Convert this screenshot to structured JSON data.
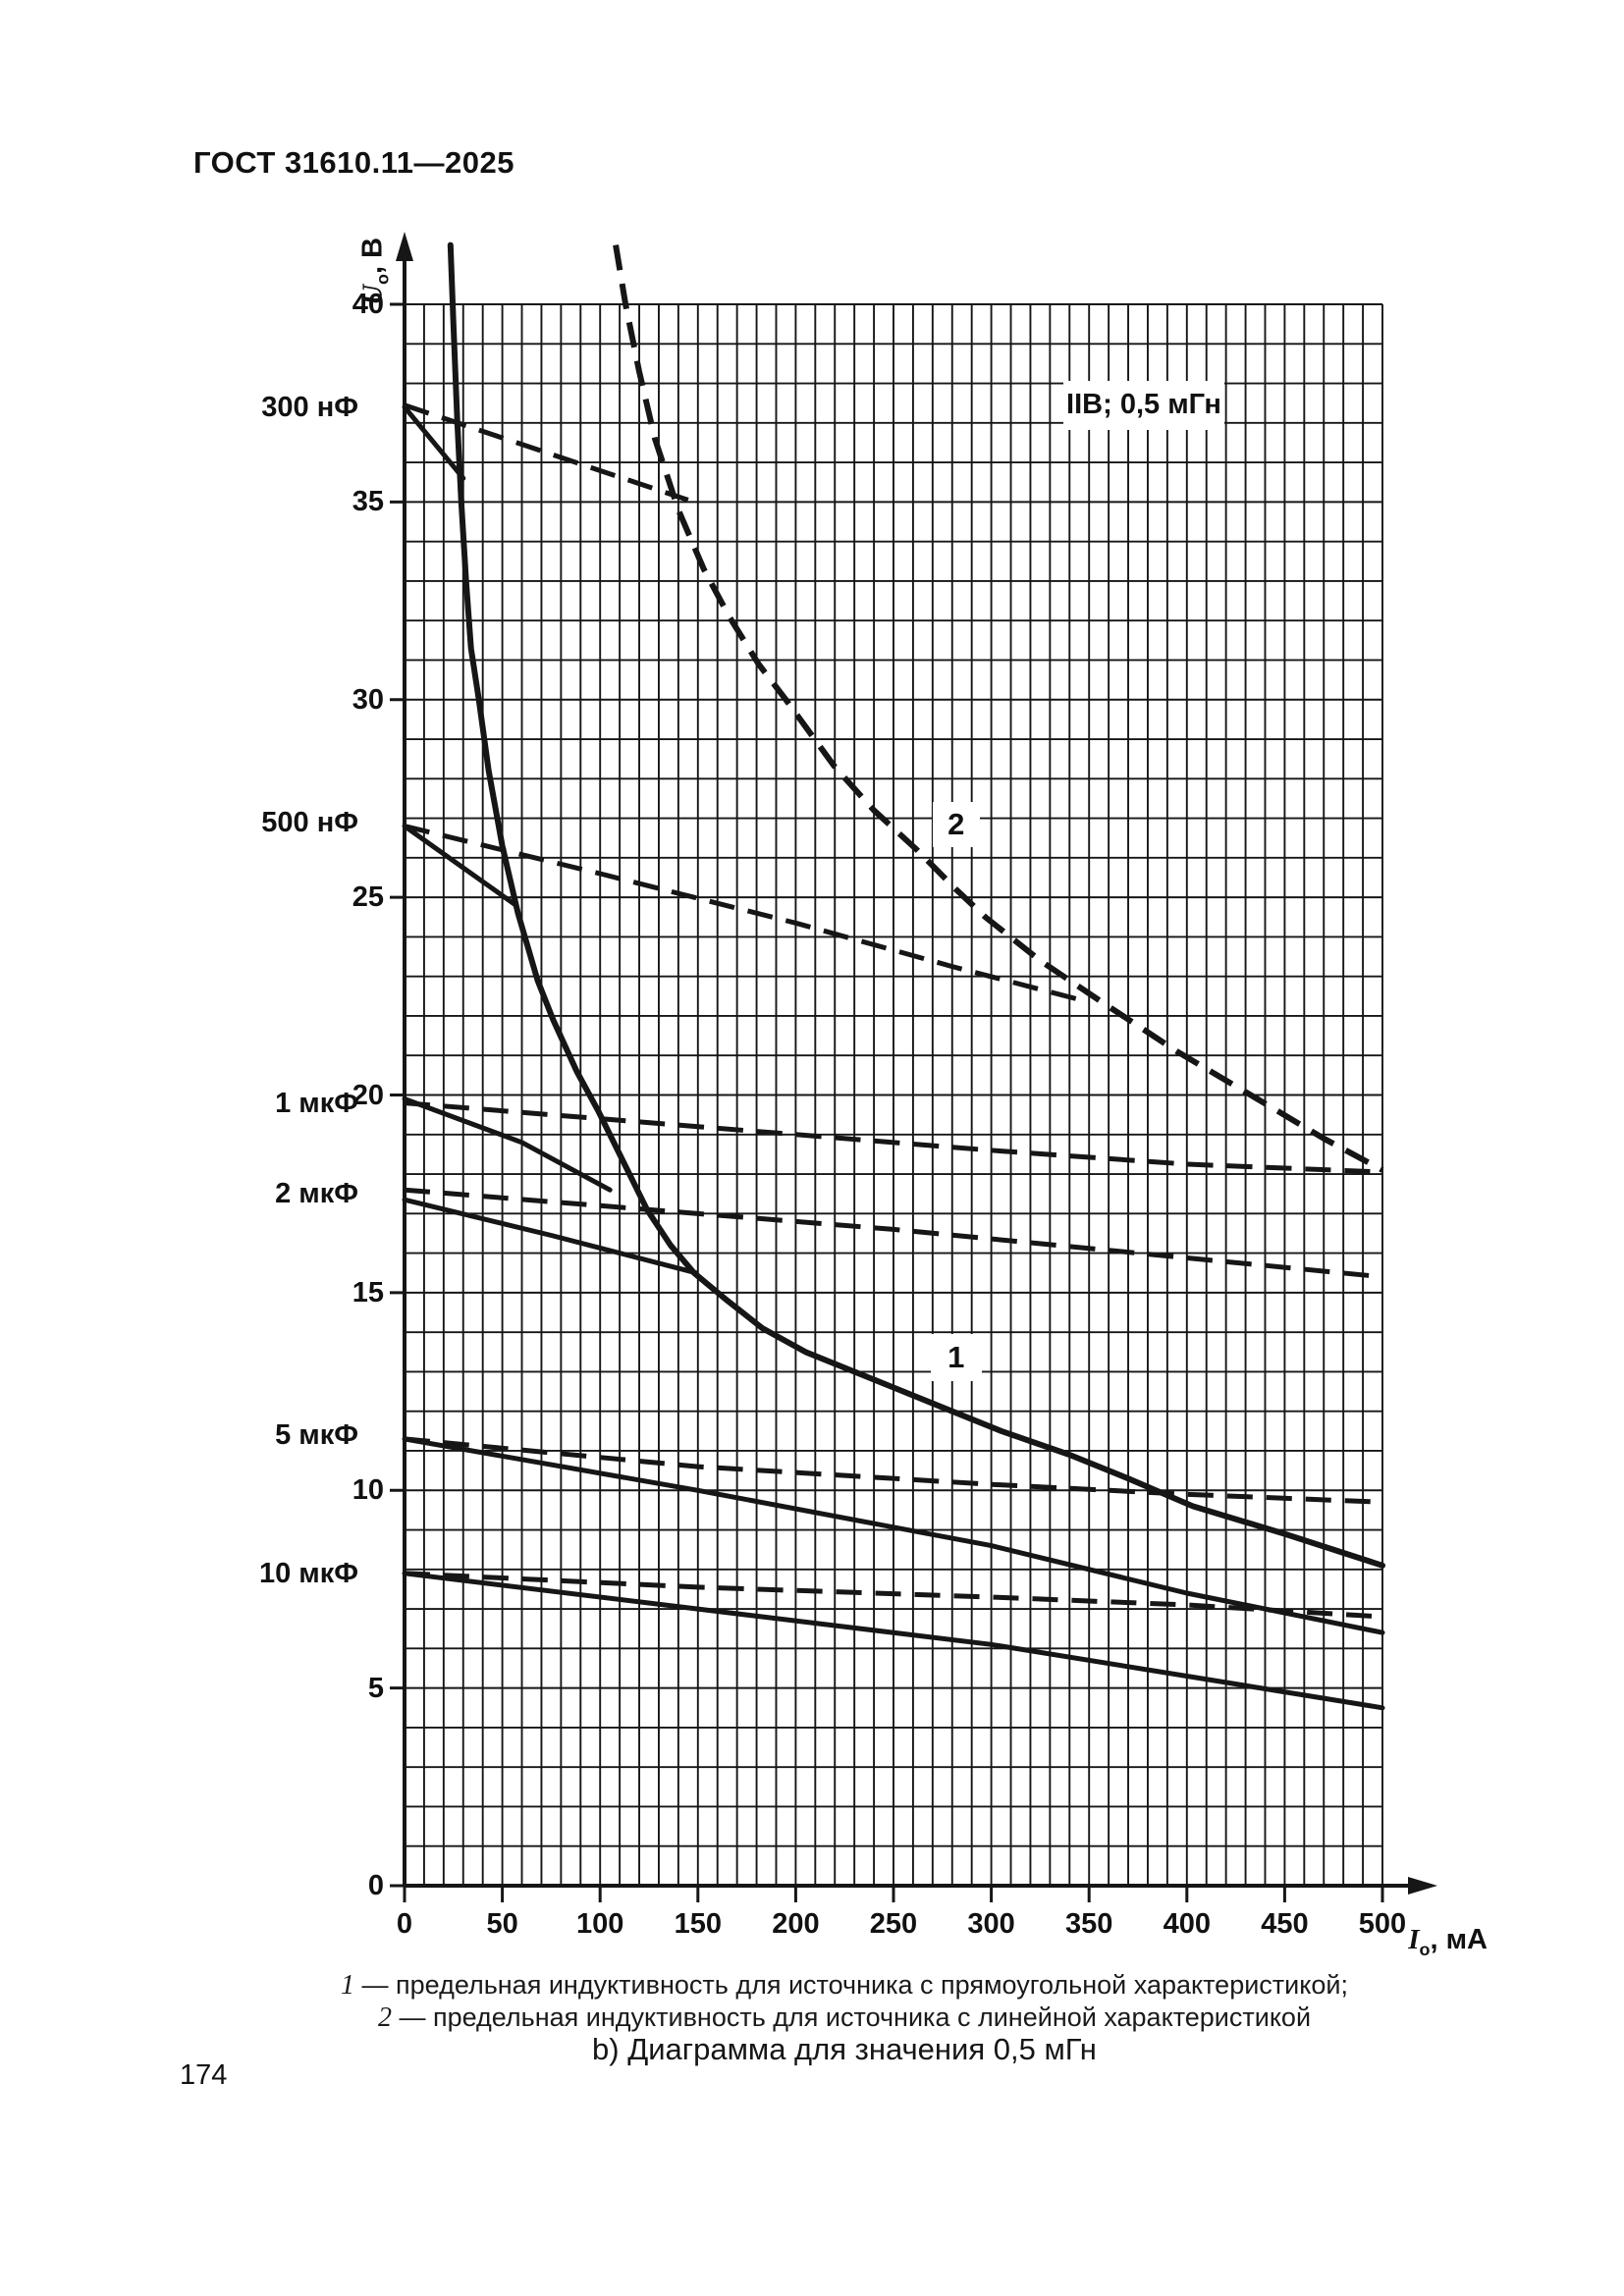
{
  "page": {
    "header": "ГОСТ 31610.11—2025",
    "page_number": "174"
  },
  "chart_data": {
    "type": "line",
    "title_box": {
      "text": "IIB; 0,5 мГн",
      "i": 378,
      "u": 37.45,
      "w": 164,
      "h": 50
    },
    "xlabel": {
      "symbol": "I",
      "sub": "o",
      "unit": ", мА"
    },
    "ylabel": {
      "symbol": "U",
      "sub": "o",
      "unit": ", В"
    },
    "xlim": [
      0,
      500
    ],
    "ylim": [
      0,
      40
    ],
    "grid": {
      "minor_x_step_mA": 10,
      "minor_y_step_V": 1
    },
    "x_ticks": [
      {
        "t": "0",
        "v": 0
      },
      {
        "t": "50",
        "v": 50
      },
      {
        "t": "100",
        "v": 100
      },
      {
        "t": "150",
        "v": 150
      },
      {
        "t": "200",
        "v": 200
      },
      {
        "t": "250",
        "v": 250
      },
      {
        "t": "300",
        "v": 300
      },
      {
        "t": "350",
        "v": 350
      },
      {
        "t": "400",
        "v": 400
      },
      {
        "t": "450",
        "v": 450
      },
      {
        "t": "500",
        "v": 500
      }
    ],
    "y_ticks": [
      {
        "t": "40",
        "v": 40
      },
      {
        "t": "35",
        "v": 35
      },
      {
        "t": "30",
        "v": 30
      },
      {
        "t": "25",
        "v": 25
      },
      {
        "t": "20",
        "v": 20
      },
      {
        "t": "15",
        "v": 15
      },
      {
        "t": "10",
        "v": 10
      },
      {
        "t": "5",
        "v": 5
      },
      {
        "t": "0",
        "v": 0
      }
    ],
    "capacitance_labels": [
      {
        "text": "300 нФ",
        "u": 37.4
      },
      {
        "text": "500 нФ",
        "u": 26.9
      },
      {
        "text": "1 мкФ",
        "u": 19.8
      },
      {
        "text": "2 мкФ",
        "u": 17.5
      },
      {
        "text": "5 мкФ",
        "u": 11.4
      },
      {
        "text": "10 мкФ",
        "u": 7.9
      }
    ],
    "curve_labels": [
      {
        "text": "1",
        "i": 282,
        "u": 13.35,
        "w": 52,
        "h": 48
      },
      {
        "text": "2",
        "i": 282,
        "u": 26.85,
        "w": 48,
        "h": 46
      }
    ],
    "series": [
      {
        "name": "curve-1-inductance-limit-rectangular",
        "style": "solid",
        "width": 6,
        "points": [
          [
            23.5,
            41.5
          ],
          [
            25,
            39.5
          ],
          [
            27,
            37
          ],
          [
            29,
            35
          ],
          [
            31.5,
            33
          ],
          [
            34,
            31.3
          ],
          [
            38,
            30
          ],
          [
            43,
            28.2
          ],
          [
            50,
            26.3
          ],
          [
            58,
            24.6
          ],
          [
            68,
            22.9
          ],
          [
            76,
            21.9
          ],
          [
            88,
            20.6
          ],
          [
            99,
            19.6
          ],
          [
            112,
            18.3
          ],
          [
            124,
            17.1
          ],
          [
            136,
            16.2
          ],
          [
            148,
            15.5
          ],
          [
            165,
            14.8
          ],
          [
            183,
            14.1
          ],
          [
            205,
            13.5
          ],
          [
            225,
            13.1
          ],
          [
            250,
            12.6
          ],
          [
            275,
            12.1
          ],
          [
            305,
            11.5
          ],
          [
            340,
            10.9
          ],
          [
            370,
            10.3
          ],
          [
            403,
            9.6
          ],
          [
            450,
            8.9
          ],
          [
            500,
            8.1
          ]
        ]
      },
      {
        "name": "curve-2-inductance-limit-linear",
        "style": "dashed",
        "width": 6,
        "points": [
          [
            108,
            41.5
          ],
          [
            113,
            40
          ],
          [
            120,
            38.3
          ],
          [
            128,
            36.6
          ],
          [
            140,
            34.8
          ],
          [
            153,
            33.3
          ],
          [
            166,
            32.1
          ],
          [
            181,
            30.9
          ],
          [
            195,
            30
          ],
          [
            220,
            28.3
          ],
          [
            240,
            27.2
          ],
          [
            262,
            26.2
          ],
          [
            282,
            25.2
          ],
          [
            297,
            24.5
          ],
          [
            325,
            23.4
          ],
          [
            355,
            22.4
          ],
          [
            395,
            21.1
          ],
          [
            436,
            19.9
          ],
          [
            470,
            18.9
          ],
          [
            500,
            18.1
          ]
        ]
      },
      {
        "name": "cap-300nF-solid",
        "style": "solid",
        "width": 5,
        "points": [
          [
            0,
            37.4
          ],
          [
            30,
            35.6
          ]
        ]
      },
      {
        "name": "cap-300nF-dashed",
        "style": "dashed",
        "width": 5,
        "points": [
          [
            0,
            37.45
          ],
          [
            145,
            35.05
          ]
        ]
      },
      {
        "name": "cap-500nF-solid",
        "style": "solid",
        "width": 5,
        "points": [
          [
            0,
            26.8
          ],
          [
            57,
            24.8
          ]
        ]
      },
      {
        "name": "cap-500nF-dashed",
        "style": "dashed",
        "width": 5,
        "points": [
          [
            0,
            26.8
          ],
          [
            100,
            25.6
          ],
          [
            200,
            24.35
          ],
          [
            280,
            23.25
          ],
          [
            350,
            22.35
          ]
        ]
      },
      {
        "name": "cap-1uF-solid",
        "style": "solid",
        "width": 5,
        "points": [
          [
            0,
            19.9
          ],
          [
            60,
            18.8
          ],
          [
            105,
            17.6
          ]
        ]
      },
      {
        "name": "cap-1uF-dashed",
        "style": "dashed",
        "width": 5,
        "points": [
          [
            0,
            19.8
          ],
          [
            150,
            19.2
          ],
          [
            300,
            18.6
          ],
          [
            400,
            18.25
          ],
          [
            500,
            18.05
          ]
        ]
      },
      {
        "name": "cap-2uF-solid",
        "style": "solid",
        "width": 5,
        "points": [
          [
            0,
            17.35
          ],
          [
            75,
            16.45
          ],
          [
            149,
            15.5
          ]
        ]
      },
      {
        "name": "cap-2uF-dashed",
        "style": "dashed",
        "width": 5,
        "points": [
          [
            0,
            17.6
          ],
          [
            250,
            16.6
          ],
          [
            500,
            15.4
          ]
        ]
      },
      {
        "name": "cap-5uF-solid",
        "style": "solid",
        "width": 5,
        "points": [
          [
            0,
            11.3
          ],
          [
            150,
            10.0
          ],
          [
            300,
            8.6
          ],
          [
            400,
            7.4
          ],
          [
            500,
            6.4
          ]
        ]
      },
      {
        "name": "cap-5uF-dashed",
        "style": "dashed",
        "width": 5,
        "points": [
          [
            0,
            11.3
          ],
          [
            150,
            10.6
          ],
          [
            300,
            10.15
          ],
          [
            400,
            9.9
          ],
          [
            500,
            9.7
          ]
        ]
      },
      {
        "name": "cap-10uF-solid",
        "style": "solid",
        "width": 5,
        "points": [
          [
            0,
            7.9
          ],
          [
            150,
            7.0
          ],
          [
            300,
            6.1
          ],
          [
            400,
            5.3
          ],
          [
            500,
            4.5
          ]
        ]
      },
      {
        "name": "cap-10uF-dashed",
        "style": "dashed",
        "width": 5,
        "points": [
          [
            0,
            7.9
          ],
          [
            150,
            7.55
          ],
          [
            300,
            7.3
          ],
          [
            400,
            7.1
          ],
          [
            500,
            6.8
          ]
        ]
      }
    ]
  },
  "legend": {
    "line1_num": "1",
    "line1_text": " — предельная индуктивность для источника с прямоугольной характеристикой;",
    "line2_num": "2",
    "line2_text": " — предельная индуктивность для источника с линейной характеристикой"
  },
  "caption": "b) Диаграмма для значения 0,5 мГн"
}
